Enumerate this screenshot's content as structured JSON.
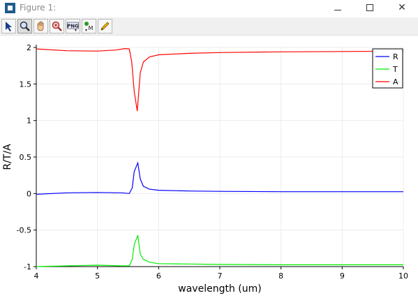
{
  "window": {
    "title": "Figure 1:",
    "minimize_icon": "minimize-icon",
    "maximize_icon": "maximize-icon",
    "close_glyph": "✕"
  },
  "toolbar": {
    "tools": [
      {
        "name": "pointer-tool",
        "icon": "arrow-pointer-icon"
      },
      {
        "name": "zoom-tool",
        "icon": "magnifier-icon"
      },
      {
        "name": "pan-tool",
        "icon": "hand-icon"
      },
      {
        "name": "zoom-reset-tool",
        "icon": "magnifier-plus-icon"
      },
      {
        "name": "save-png-tool",
        "icon": "png-icon",
        "label": "PNG"
      },
      {
        "name": "marker-tool",
        "icon": "marker-icon",
        "label": "M"
      },
      {
        "name": "pencil-tool",
        "icon": "pencil-icon"
      }
    ]
  },
  "chart_data": {
    "type": "line",
    "xlabel": "wavelength (um)",
    "ylabel": "R/T/A",
    "xlim": [
      4,
      10
    ],
    "ylim": [
      -1,
      2
    ],
    "xticks": [
      "4",
      "5",
      "6",
      "7",
      "8",
      "9",
      "10"
    ],
    "yticks": [
      "2",
      "1.5",
      "1",
      "0.5",
      "0",
      "-0.5",
      "-1"
    ],
    "grid": true,
    "legend_position": "top-right",
    "series": [
      {
        "name": "R",
        "color": "#0000ff",
        "points": [
          [
            4.0,
            -0.01
          ],
          [
            4.5,
            0.01
          ],
          [
            5.0,
            0.015
          ],
          [
            5.4,
            0.01
          ],
          [
            5.52,
            0.0
          ],
          [
            5.57,
            0.08
          ],
          [
            5.6,
            0.3
          ],
          [
            5.66,
            0.42
          ],
          [
            5.7,
            0.2
          ],
          [
            5.75,
            0.1
          ],
          [
            5.85,
            0.06
          ],
          [
            6.0,
            0.045
          ],
          [
            6.5,
            0.035
          ],
          [
            7.0,
            0.03
          ],
          [
            8.0,
            0.025
          ],
          [
            9.0,
            0.025
          ],
          [
            10.0,
            0.025
          ]
        ]
      },
      {
        "name": "T",
        "color": "#00ee00",
        "points": [
          [
            4.0,
            -1.0
          ],
          [
            4.5,
            -0.99
          ],
          [
            5.0,
            -0.98
          ],
          [
            5.4,
            -0.99
          ],
          [
            5.52,
            -0.99
          ],
          [
            5.57,
            -0.9
          ],
          [
            5.6,
            -0.7
          ],
          [
            5.66,
            -0.57
          ],
          [
            5.7,
            -0.83
          ],
          [
            5.75,
            -0.9
          ],
          [
            5.85,
            -0.94
          ],
          [
            6.0,
            -0.96
          ],
          [
            6.5,
            -0.965
          ],
          [
            7.0,
            -0.97
          ],
          [
            8.0,
            -0.975
          ],
          [
            9.0,
            -0.975
          ],
          [
            10.0,
            -0.975
          ]
        ]
      },
      {
        "name": "A",
        "color": "#ff0000",
        "points": [
          [
            4.0,
            1.98
          ],
          [
            4.5,
            1.955
          ],
          [
            5.0,
            1.95
          ],
          [
            5.3,
            1.965
          ],
          [
            5.45,
            1.985
          ],
          [
            5.52,
            1.98
          ],
          [
            5.56,
            1.8
          ],
          [
            5.6,
            1.4
          ],
          [
            5.65,
            1.13
          ],
          [
            5.7,
            1.65
          ],
          [
            5.75,
            1.8
          ],
          [
            5.85,
            1.87
          ],
          [
            6.0,
            1.9
          ],
          [
            6.5,
            1.92
          ],
          [
            7.0,
            1.93
          ],
          [
            8.0,
            1.94
          ],
          [
            9.0,
            1.945
          ],
          [
            10.0,
            1.95
          ]
        ]
      }
    ]
  }
}
